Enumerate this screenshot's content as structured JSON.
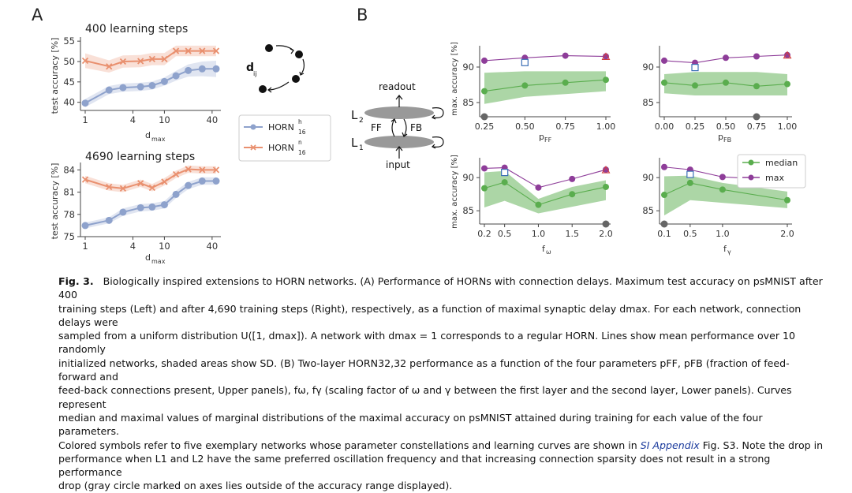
{
  "panel_labels": {
    "a": "A",
    "b": "B"
  },
  "panel_a": {
    "top_title": "400 learning steps",
    "bottom_title": "4690 learning steps",
    "ylabel": "test accuracy [%]",
    "xlabel": "d",
    "xlabel_sub": "max",
    "legend": [
      {
        "label": "HORN",
        "sup": "h",
        "sub": "16",
        "color": "#8ea2cc"
      },
      {
        "label": "HORN",
        "sup": "n",
        "sub": "16",
        "color": "#e9906f"
      }
    ],
    "diagram_label": "d",
    "diagram_label_sub": "ij"
  },
  "panel_b_diagram": {
    "readout": "readout",
    "input": "input",
    "l2": "L",
    "l2_sub": "2",
    "l1": "L",
    "l1_sub": "1",
    "ff": "FF",
    "fb": "FB"
  },
  "panel_b": {
    "ylabel": "max. accuracy [%]",
    "legend": [
      {
        "label": "median",
        "color": "#5aad4e"
      },
      {
        "label": "max",
        "color": "#8e3d99"
      }
    ],
    "subplot_xlabels": [
      {
        "main": "p",
        "sub": "FF"
      },
      {
        "main": "p",
        "sub": "FB"
      },
      {
        "main": "f",
        "sub": "ω"
      },
      {
        "main": "f",
        "sub": "γ"
      }
    ]
  },
  "chart_data": [
    {
      "type": "line",
      "title": "400 learning steps",
      "xlabel": "dmax",
      "ylabel": "test accuracy [%]",
      "x_scale": "log",
      "x": [
        1,
        2,
        3,
        5,
        7,
        10,
        14,
        20,
        30,
        45
      ],
      "xticks": [
        "1",
        "4",
        "10",
        "40"
      ],
      "yticks": [
        "40",
        "45",
        "50",
        "55"
      ],
      "ylim": [
        38,
        56
      ],
      "series": [
        {
          "name": "HORN h16",
          "color": "#8ea2cc",
          "values": [
            39.8,
            43.0,
            43.6,
            43.8,
            44.1,
            45.1,
            46.5,
            47.8,
            48.2,
            48.2
          ],
          "sd": [
            1.0,
            1.0,
            1.0,
            1.0,
            1.0,
            1.0,
            1.2,
            1.5,
            1.8,
            2.0
          ]
        },
        {
          "name": "HORN n16",
          "color": "#e9906f",
          "values": [
            50.2,
            48.8,
            50.0,
            50.1,
            50.6,
            50.6,
            52.6,
            52.6,
            52.6,
            52.6
          ],
          "sd": [
            1.8,
            1.5,
            1.5,
            1.5,
            1.5,
            1.5,
            1.3,
            1.3,
            1.3,
            1.3
          ]
        }
      ]
    },
    {
      "type": "line",
      "title": "4690 learning steps",
      "xlabel": "dmax",
      "ylabel": "test accuracy [%]",
      "x_scale": "log",
      "x": [
        1,
        2,
        3,
        5,
        7,
        10,
        14,
        20,
        30,
        45
      ],
      "xticks": [
        "1",
        "4",
        "10",
        "40"
      ],
      "yticks": [
        "75",
        "78",
        "81",
        "84"
      ],
      "ylim": [
        75,
        85
      ],
      "series": [
        {
          "name": "HORN h16",
          "color": "#8ea2cc",
          "values": [
            76.5,
            77.2,
            78.3,
            78.9,
            79.0,
            79.3,
            80.7,
            81.9,
            82.5,
            82.5
          ],
          "sd": [
            0.4,
            0.4,
            0.5,
            0.5,
            0.5,
            0.5,
            0.5,
            0.5,
            0.5,
            0.5
          ]
        },
        {
          "name": "HORN n16",
          "color": "#e9906f",
          "values": [
            82.7,
            81.7,
            81.5,
            82.2,
            81.6,
            82.4,
            83.4,
            84.1,
            84.0,
            84.0
          ],
          "sd": [
            0.5,
            0.5,
            0.5,
            0.5,
            0.5,
            0.5,
            0.5,
            0.5,
            0.5,
            0.5
          ]
        }
      ]
    },
    {
      "type": "line",
      "xlabel": "pFF",
      "ylabel": "max. accuracy [%]",
      "x": [
        0.25,
        0.5,
        0.75,
        1.0
      ],
      "xticks": [
        "0.25",
        "0.50",
        "0.75",
        "1.00"
      ],
      "yticks": [
        "85",
        "90"
      ],
      "ylim": [
        83,
        93
      ],
      "series": [
        {
          "name": "median",
          "color": "#5aad4e",
          "values": [
            86.6,
            87.4,
            87.8,
            88.2
          ],
          "band_low": [
            84.8,
            85.8,
            86.2,
            86.6
          ],
          "band_high": [
            89.2,
            89.4,
            89.4,
            89.4
          ]
        },
        {
          "name": "max",
          "color": "#8e3d99",
          "values": [
            90.9,
            91.3,
            91.6,
            91.5
          ]
        }
      ]
    },
    {
      "type": "line",
      "xlabel": "pFB",
      "ylabel": "max. accuracy [%]",
      "x": [
        0.0,
        0.25,
        0.5,
        0.75,
        1.0
      ],
      "xticks": [
        "0.00",
        "0.25",
        "0.50",
        "0.75",
        "1.00"
      ],
      "yticks": [
        "85",
        "90"
      ],
      "ylim": [
        83,
        93
      ],
      "series": [
        {
          "name": "median",
          "color": "#5aad4e",
          "values": [
            87.8,
            87.4,
            87.8,
            87.3,
            87.6
          ],
          "band_low": [
            86.3,
            86.0,
            86.0,
            86.0,
            86.0
          ],
          "band_high": [
            89.0,
            89.3,
            89.3,
            89.3,
            89.0
          ]
        },
        {
          "name": "max",
          "color": "#8e3d99",
          "values": [
            90.9,
            90.6,
            91.3,
            91.5,
            91.7
          ]
        }
      ]
    },
    {
      "type": "line",
      "xlabel": "fω",
      "ylabel": "max. accuracy [%]",
      "x": [
        0.2,
        0.5,
        1.0,
        1.5,
        2.0
      ],
      "xticks": [
        "0.2",
        "0.5",
        "1.0",
        "1.5",
        "2.0"
      ],
      "yticks": [
        "85",
        "90"
      ],
      "ylim": [
        83,
        93
      ],
      "series": [
        {
          "name": "median",
          "color": "#5aad4e",
          "values": [
            88.4,
            89.3,
            85.9,
            87.5,
            88.6
          ],
          "band_low": [
            85.5,
            86.5,
            84.6,
            85.6,
            86.6
          ],
          "band_high": [
            90.8,
            91.0,
            86.8,
            88.6,
            89.6
          ]
        },
        {
          "name": "max",
          "color": "#8e3d99",
          "values": [
            91.4,
            91.5,
            88.5,
            89.8,
            91.2
          ]
        }
      ]
    },
    {
      "type": "line",
      "xlabel": "fγ",
      "ylabel": "max. accuracy [%]",
      "x": [
        0.1,
        0.5,
        1.0,
        2.0
      ],
      "xticks": [
        "0.1",
        "0.5",
        "1.0",
        "2.0"
      ],
      "yticks": [
        "85",
        "90"
      ],
      "ylim": [
        83,
        93
      ],
      "series": [
        {
          "name": "median",
          "color": "#5aad4e",
          "values": [
            87.4,
            89.2,
            88.2,
            86.6
          ],
          "band_low": [
            84.3,
            86.6,
            86.2,
            85.4
          ],
          "band_high": [
            90.2,
            90.3,
            89.2,
            87.9
          ]
        },
        {
          "name": "max",
          "color": "#8e3d99",
          "values": [
            91.6,
            91.2,
            90.1,
            89.6
          ]
        }
      ]
    }
  ],
  "caption": {
    "fig_label": "Fig. 3.",
    "l1": "Biologically inspired extensions to HORN networks. (A) Performance of HORNs with connection delays. Maximum test accuracy on psMNIST after 400",
    "l2": "training steps (Left) and after 4,690 training steps (Right), respectively, as a function of maximal synaptic delay dmax. For each network, connection delays were",
    "l3": "sampled from a uniform distribution U([1, dmax]). A network with dmax = 1 corresponds to a regular HORN. Lines show mean performance over 10 randomly",
    "l4": "initialized networks, shaded areas show SD. (B) Two-layer HORN32,32 performance as a function of the four parameters pFF, pFB (fraction of feed-forward and",
    "l5": "feed-back connections present, Upper panels), fω, fγ (scaling factor of ω and γ between the first layer and the second layer, Lower panels). Curves represent",
    "l6": "median and maximal values of marginal distributions of the maximal accuracy on psMNIST attained during training for each value of the four parameters.",
    "l7a": "Colored symbols refer to five exemplary networks whose parameter constellations and learning curves are shown in ",
    "l7si": "SI Appendix",
    "l7b": " Fig. S3. Note the drop in",
    "l8": "performance when L1 and L2 have the same preferred oscillation frequency and that increasing connection sparsity does not result in a strong performance",
    "l9": "drop (gray circle marked on axes lies outside of the accuracy range displayed)."
  }
}
